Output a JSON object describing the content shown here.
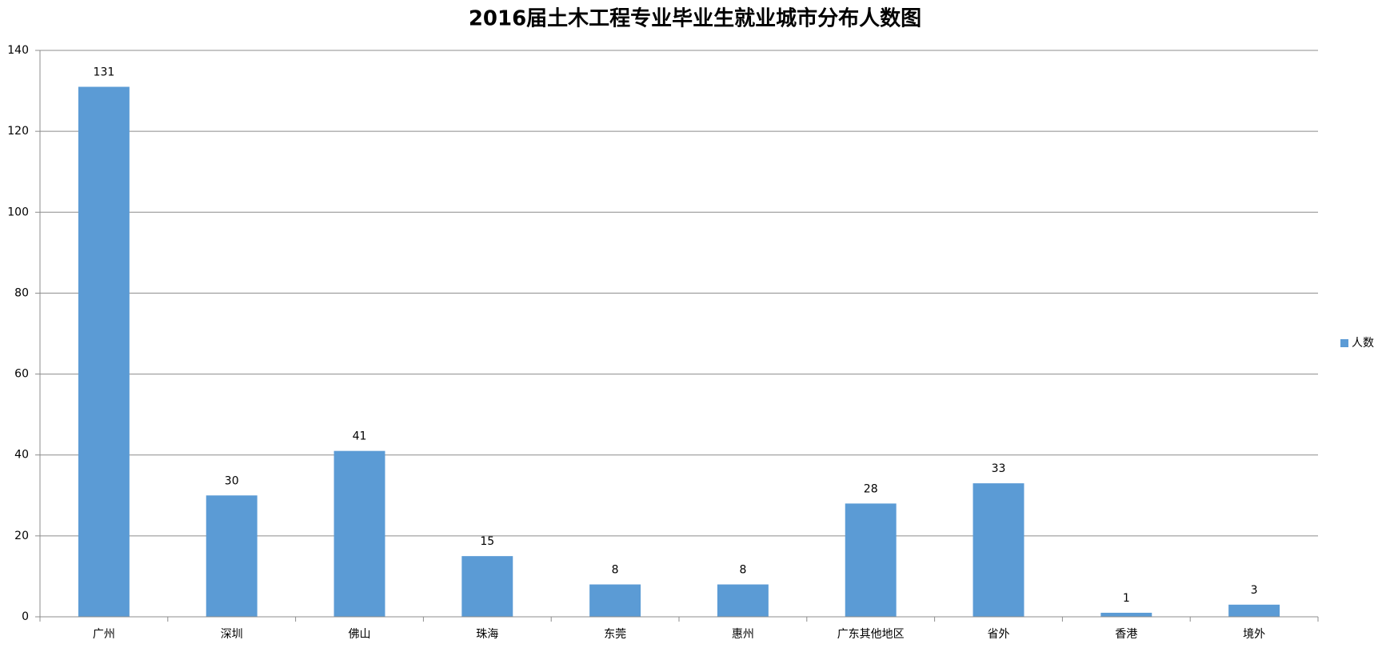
{
  "chart_data": {
    "type": "bar",
    "title": "2016届土木工程专业毕业生就业城市分布人数图",
    "categories": [
      "广州",
      "深圳",
      "佛山",
      "珠海",
      "东莞",
      "惠州",
      "广东其他地区",
      "省外",
      "香港",
      "境外"
    ],
    "series": [
      {
        "name": "人数",
        "color": "#5b9bd5",
        "values": [
          131,
          30,
          41,
          15,
          8,
          8,
          28,
          33,
          1,
          3
        ]
      }
    ],
    "ylim": [
      0,
      140
    ],
    "yticks": [
      0,
      20,
      40,
      60,
      80,
      100,
      120,
      140
    ],
    "grid": true,
    "legend": "right"
  }
}
